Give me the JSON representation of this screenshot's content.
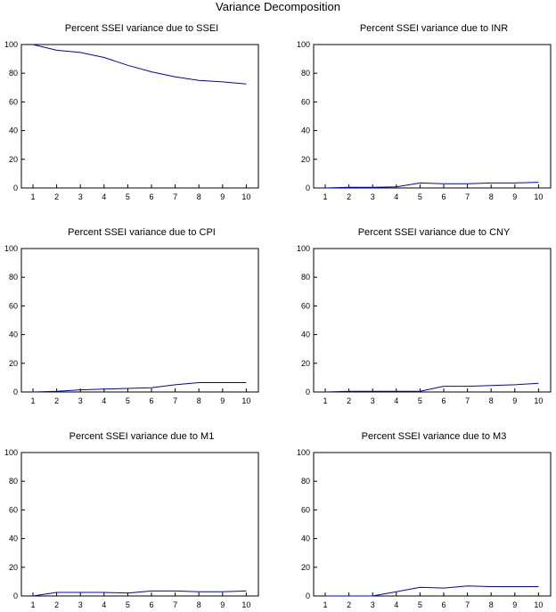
{
  "title": "Variance Decomposition",
  "colors": {
    "line": "#0000cc",
    "axis": "#000000",
    "background": "#ffffff"
  },
  "chart_data": [
    {
      "type": "line",
      "title": "Percent SSEI variance due to SSEI",
      "x": [
        1,
        2,
        3,
        4,
        5,
        6,
        7,
        8,
        9,
        10
      ],
      "ylim": [
        0,
        100
      ],
      "yticks": [
        0,
        20,
        40,
        60,
        80,
        100
      ],
      "xticks": [
        1,
        2,
        3,
        4,
        5,
        6,
        7,
        8,
        9,
        10
      ],
      "grid": false,
      "values": [
        100,
        96,
        94.5,
        91,
        85.5,
        81,
        77.5,
        75,
        74,
        72.5
      ]
    },
    {
      "type": "line",
      "title": "Percent SSEI variance due to INR",
      "x": [
        1,
        2,
        3,
        4,
        5,
        6,
        7,
        8,
        9,
        10
      ],
      "ylim": [
        0,
        100
      ],
      "yticks": [
        0,
        20,
        40,
        60,
        80,
        100
      ],
      "xticks": [
        1,
        2,
        3,
        4,
        5,
        6,
        7,
        8,
        9,
        10
      ],
      "grid": false,
      "values": [
        0,
        0.5,
        0.5,
        0.8,
        3.5,
        3,
        3,
        3.5,
        3.5,
        4
      ]
    },
    {
      "type": "line",
      "title": "Percent SSEI variance due to CPI",
      "x": [
        1,
        2,
        3,
        4,
        5,
        6,
        7,
        8,
        9,
        10
      ],
      "ylim": [
        0,
        100
      ],
      "yticks": [
        0,
        20,
        40,
        60,
        80,
        100
      ],
      "xticks": [
        1,
        2,
        3,
        4,
        5,
        6,
        7,
        8,
        9,
        10
      ],
      "grid": false,
      "values": [
        0,
        0.5,
        1.5,
        2,
        2.5,
        3,
        5,
        6.5,
        6.5,
        6.5
      ]
    },
    {
      "type": "line",
      "title": "Percent SSEI variance due to CNY",
      "x": [
        1,
        2,
        3,
        4,
        5,
        6,
        7,
        8,
        9,
        10
      ],
      "ylim": [
        0,
        100
      ],
      "yticks": [
        0,
        20,
        40,
        60,
        80,
        100
      ],
      "xticks": [
        1,
        2,
        3,
        4,
        5,
        6,
        7,
        8,
        9,
        10
      ],
      "grid": false,
      "values": [
        0,
        0.5,
        0.5,
        0.5,
        0.5,
        4,
        4,
        4.5,
        5,
        6
      ]
    },
    {
      "type": "line",
      "title": "Percent SSEI variance due to M1",
      "x": [
        1,
        2,
        3,
        4,
        5,
        6,
        7,
        8,
        9,
        10
      ],
      "ylim": [
        0,
        100
      ],
      "yticks": [
        0,
        20,
        40,
        60,
        80,
        100
      ],
      "xticks": [
        1,
        2,
        3,
        4,
        5,
        6,
        7,
        8,
        9,
        10
      ],
      "grid": false,
      "values": [
        0,
        2.5,
        2.5,
        2.5,
        2,
        3.5,
        3.5,
        3,
        3,
        3.5
      ]
    },
    {
      "type": "line",
      "title": "Percent SSEI variance due to M3",
      "x": [
        1,
        2,
        3,
        4,
        5,
        6,
        7,
        8,
        9,
        10
      ],
      "ylim": [
        0,
        100
      ],
      "yticks": [
        0,
        20,
        40,
        60,
        80,
        100
      ],
      "xticks": [
        1,
        2,
        3,
        4,
        5,
        6,
        7,
        8,
        9,
        10
      ],
      "grid": false,
      "values": [
        0,
        0,
        0,
        3,
        6,
        5.5,
        7,
        6.5,
        6.5,
        6.5
      ]
    }
  ]
}
